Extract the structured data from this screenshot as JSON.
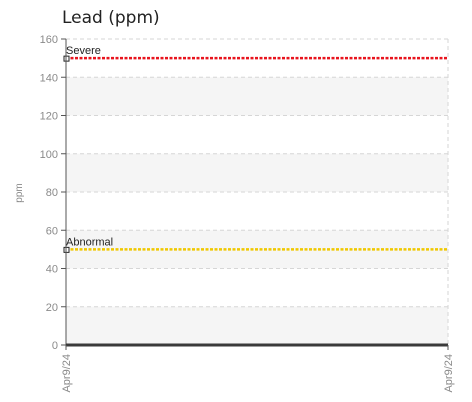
{
  "chart_data": {
    "type": "line",
    "title": "Lead (ppm)",
    "ylabel": "ppm",
    "xlabel": "",
    "ylim": [
      0,
      160
    ],
    "yticks": [
      0,
      20,
      40,
      60,
      80,
      100,
      120,
      140,
      160
    ],
    "x_ticks": [
      "Apr9/24",
      "Apr9/24"
    ],
    "grid": true,
    "thresholds": [
      {
        "name": "Severe",
        "value": 150,
        "color": "#e8141e"
      },
      {
        "name": "Abnormal",
        "value": 50,
        "color": "#f0c800"
      }
    ]
  }
}
